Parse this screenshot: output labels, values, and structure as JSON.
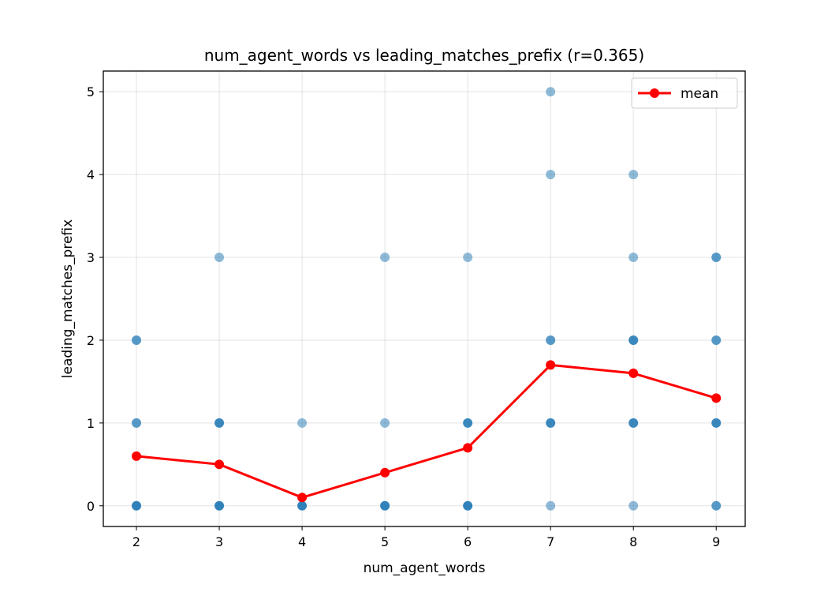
{
  "chart_data": {
    "type": "scatter",
    "title": "num_agent_words vs leading_matches_prefix (r=0.365)",
    "xlabel": "num_agent_words",
    "ylabel": "leading_matches_prefix",
    "xlim": [
      1.6,
      9.35
    ],
    "ylim": [
      -0.25,
      5.25
    ],
    "xticks": [
      2,
      3,
      4,
      5,
      6,
      7,
      8,
      9
    ],
    "yticks": [
      0,
      1,
      2,
      3,
      4,
      5
    ],
    "grid": true,
    "legend": {
      "position": "top-right",
      "entries": [
        "mean"
      ]
    },
    "colors": {
      "points": "#1f77b4",
      "mean": "#ff0000"
    },
    "scatter": [
      {
        "x": 2,
        "y": 0,
        "count": 5
      },
      {
        "x": 2,
        "y": 1,
        "count": 2
      },
      {
        "x": 2,
        "y": 2,
        "count": 2
      },
      {
        "x": 3,
        "y": 0,
        "count": 5
      },
      {
        "x": 3,
        "y": 1,
        "count": 3
      },
      {
        "x": 3,
        "y": 3,
        "count": 1
      },
      {
        "x": 4,
        "y": 0,
        "count": 8
      },
      {
        "x": 4,
        "y": 1,
        "count": 1
      },
      {
        "x": 5,
        "y": 0,
        "count": 5
      },
      {
        "x": 5,
        "y": 1,
        "count": 1
      },
      {
        "x": 5,
        "y": 3,
        "count": 1
      },
      {
        "x": 6,
        "y": 0,
        "count": 5
      },
      {
        "x": 6,
        "y": 1,
        "count": 3
      },
      {
        "x": 6,
        "y": 3,
        "count": 1
      },
      {
        "x": 7,
        "y": 0,
        "count": 1
      },
      {
        "x": 7,
        "y": 1,
        "count": 3
      },
      {
        "x": 7,
        "y": 2,
        "count": 2
      },
      {
        "x": 7,
        "y": 4,
        "count": 1
      },
      {
        "x": 7,
        "y": 5,
        "count": 1
      },
      {
        "x": 8,
        "y": 0,
        "count": 1
      },
      {
        "x": 8,
        "y": 1,
        "count": 3
      },
      {
        "x": 8,
        "y": 2,
        "count": 3
      },
      {
        "x": 8,
        "y": 3,
        "count": 1
      },
      {
        "x": 8,
        "y": 4,
        "count": 1
      },
      {
        "x": 9,
        "y": 0,
        "count": 2
      },
      {
        "x": 9,
        "y": 1,
        "count": 3
      },
      {
        "x": 9,
        "y": 2,
        "count": 2
      },
      {
        "x": 9,
        "y": 3,
        "count": 2
      }
    ],
    "series": [
      {
        "name": "mean",
        "x": [
          2,
          3,
          4,
          5,
          6,
          7,
          8,
          9
        ],
        "values": [
          0.6,
          0.5,
          0.1,
          0.4,
          0.7,
          1.7,
          1.6,
          1.3
        ]
      }
    ]
  }
}
